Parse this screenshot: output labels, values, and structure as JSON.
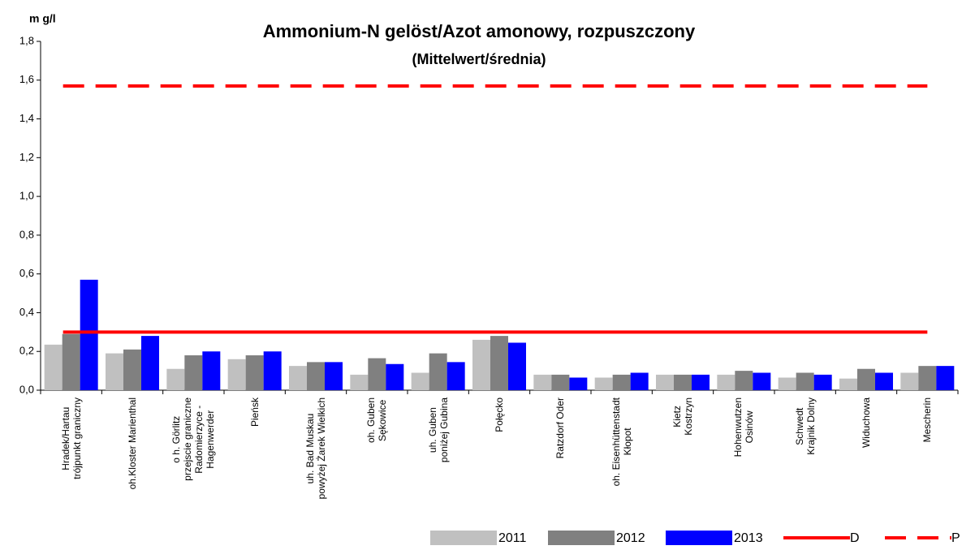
{
  "chart_data": {
    "type": "bar",
    "title": "Ammonium-N gelöst/Azot amonowy, rozpuszczony",
    "subtitle": "(Mittelwert/średnia)",
    "y_label": "m g/l",
    "categories": [
      "Hradek/Hartau\ntrójpunkt graniczny",
      "oh.Kloster Marienthal",
      "o h. Görlitz\nprzejscie graniczne\nRadomierzyce -\nHagenwerder",
      "Pieńsk",
      "uh. Bad Muskau\npowyżej Żarek Wielkich",
      "oh. Guben\nSękowice",
      "uh. Guben\nponiżej Gubina",
      "Połęcko",
      "Ratzdorf Oder",
      "oh. Eisenhüttenstadt\nKłopot",
      "Kietz\nKostrzyn",
      "Hohenwutzen\nOsinów",
      "Schwedt\nKrajnik Dolny",
      "Widuchowa",
      "Mescherin"
    ],
    "series": [
      {
        "name": "2011",
        "color": "#c0c0c0",
        "values": [
          0.235,
          0.19,
          0.11,
          0.16,
          0.125,
          0.08,
          0.09,
          0.26,
          0.08,
          0.065,
          0.08,
          0.08,
          0.065,
          0.06,
          0.09
        ]
      },
      {
        "name": "2012",
        "color": "#808080",
        "values": [
          0.29,
          0.21,
          0.18,
          0.18,
          0.145,
          0.165,
          0.19,
          0.28,
          0.08,
          0.08,
          0.08,
          0.1,
          0.09,
          0.11,
          0.125
        ]
      },
      {
        "name": "2013",
        "color": "#0000ff",
        "values": [
          0.57,
          0.28,
          0.2,
          0.2,
          0.145,
          0.135,
          0.145,
          0.245,
          0.065,
          0.09,
          0.08,
          0.09,
          0.08,
          0.09,
          0.125
        ]
      }
    ],
    "reference_lines": [
      {
        "name": "D",
        "value": 0.3,
        "color": "#ff0000",
        "style": "solid"
      },
      {
        "name": "P",
        "value": 1.57,
        "color": "#ff0000",
        "style": "dashed"
      }
    ],
    "ylim": [
      0,
      1.8
    ],
    "yticks": [
      {
        "value": 0,
        "label": "0,0"
      },
      {
        "value": 0.2,
        "label": "0,2"
      },
      {
        "value": 0.4,
        "label": "0,4"
      },
      {
        "value": 0.6,
        "label": "0,6"
      },
      {
        "value": 0.8,
        "label": "0,8"
      },
      {
        "value": 1.0,
        "label": "1,0"
      },
      {
        "value": 1.2,
        "label": "1,2"
      },
      {
        "value": 1.4,
        "label": "1,4"
      },
      {
        "value": 1.6,
        "label": "1,6"
      },
      {
        "value": 1.8,
        "label": "1,8"
      }
    ],
    "grid": false
  }
}
